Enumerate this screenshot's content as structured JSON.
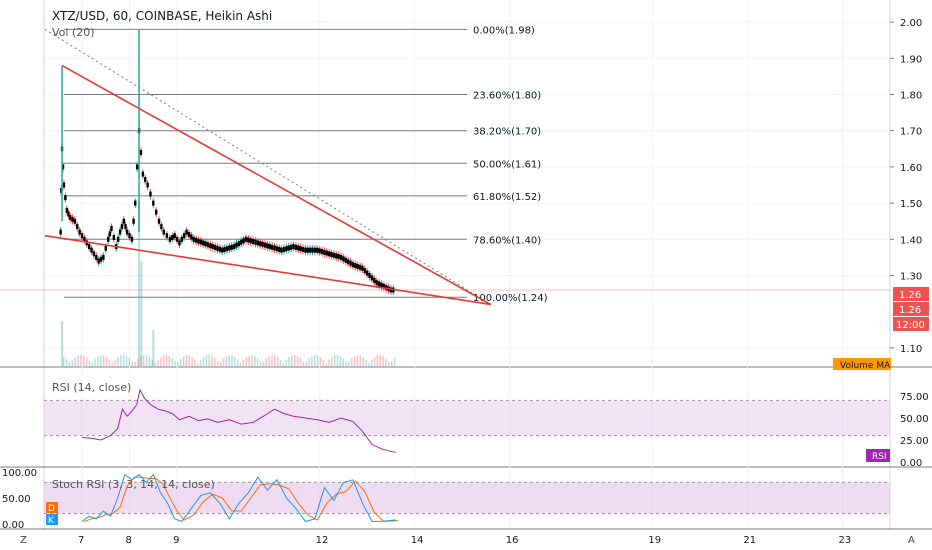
{
  "header": {
    "symbol_line": "XTZ/USD, 60, COINBASE, Heikin Ashi",
    "volume_label": "Vol (20)"
  },
  "colors": {
    "bull": "#26a69a",
    "bear": "#ef5350",
    "candle_body": "#000000",
    "trendline": "#e53935",
    "fib_line": "#787b86",
    "rsi": "#9c27b0",
    "rsi_band": "#e1bee7",
    "stoch_k": "#2196f3",
    "stoch_d": "#ff6d00",
    "price_tag": "#ef5350",
    "volume_ma_tag": "#ff9800"
  },
  "price_axis": {
    "ticks": [
      "2.00",
      "1.90",
      "1.80",
      "1.70",
      "1.60",
      "1.50",
      "1.40",
      "1.30",
      "1.10"
    ],
    "current_price": "1.26",
    "current_price_2": "1.26",
    "countdown": "12:00"
  },
  "volume_ma_tag": "Volume MA",
  "fib_levels": [
    {
      "label": "0.00%(1.98)",
      "price": 1.98
    },
    {
      "label": "23.60%(1.80)",
      "price": 1.8
    },
    {
      "label": "38.20%(1.70)",
      "price": 1.7
    },
    {
      "label": "50.00%(1.61)",
      "price": 1.61
    },
    {
      "label": "61.80%(1.52)",
      "price": 1.52
    },
    {
      "label": "78.60%(1.40)",
      "price": 1.4
    },
    {
      "label": "100.00%(1.24)",
      "price": 1.24
    }
  ],
  "rsi_pane": {
    "label": "RSI (14, close)",
    "ticks": [
      "75.00",
      "50.00",
      "25.00",
      "0.00"
    ],
    "tag": "RSI"
  },
  "stoch_pane": {
    "label": "Stoch RSI (3, 3, 14, 14, close)",
    "ticks": [
      "100.00",
      "50.00",
      "0.00"
    ],
    "d_tag": "D",
    "k_tag": "K"
  },
  "time_axis": {
    "labels": [
      "7",
      "8",
      "9",
      "12",
      "14",
      "16",
      "19",
      "21",
      "23"
    ],
    "left_button": "Z",
    "right_button": "A"
  },
  "chart_data": {
    "type": "candlestick",
    "ylim": [
      1.05,
      2.05
    ],
    "grid": true,
    "x_day_range": [
      6.2,
      24.0
    ],
    "price_path": [
      [
        6.55,
        1.42
      ],
      [
        6.58,
        1.65
      ],
      [
        6.62,
        1.55
      ],
      [
        6.68,
        1.48
      ],
      [
        6.75,
        1.46
      ],
      [
        6.85,
        1.45
      ],
      [
        6.95,
        1.42
      ],
      [
        7.05,
        1.4
      ],
      [
        7.15,
        1.38
      ],
      [
        7.25,
        1.36
      ],
      [
        7.35,
        1.34
      ],
      [
        7.45,
        1.35
      ],
      [
        7.55,
        1.4
      ],
      [
        7.62,
        1.43
      ],
      [
        7.72,
        1.38
      ],
      [
        7.8,
        1.42
      ],
      [
        7.88,
        1.45
      ],
      [
        7.95,
        1.42
      ],
      [
        8.05,
        1.4
      ],
      [
        8.12,
        1.5
      ],
      [
        8.2,
        1.7
      ],
      [
        8.28,
        1.58
      ],
      [
        8.38,
        1.55
      ],
      [
        8.5,
        1.5
      ],
      [
        8.62,
        1.45
      ],
      [
        8.72,
        1.42
      ],
      [
        8.85,
        1.4
      ],
      [
        8.95,
        1.41
      ],
      [
        9.05,
        1.39
      ],
      [
        9.2,
        1.42
      ],
      [
        9.35,
        1.4
      ],
      [
        9.55,
        1.39
      ],
      [
        9.75,
        1.38
      ],
      [
        9.95,
        1.37
      ],
      [
        10.2,
        1.38
      ],
      [
        10.45,
        1.4
      ],
      [
        10.7,
        1.39
      ],
      [
        10.95,
        1.38
      ],
      [
        11.2,
        1.37
      ],
      [
        11.45,
        1.38
      ],
      [
        11.7,
        1.37
      ],
      [
        11.95,
        1.37
      ],
      [
        12.2,
        1.36
      ],
      [
        12.45,
        1.35
      ],
      [
        12.7,
        1.33
      ],
      [
        12.9,
        1.32
      ],
      [
        13.05,
        1.3
      ],
      [
        13.2,
        1.28
      ],
      [
        13.35,
        1.27
      ],
      [
        13.5,
        1.26
      ],
      [
        13.6,
        1.26
      ]
    ],
    "volume_spikes": [
      {
        "day": 6.58,
        "relative": 0.15
      },
      {
        "day": 8.2,
        "relative": 0.55
      },
      {
        "day": 8.25,
        "relative": 0.35
      },
      {
        "day": 8.5,
        "relative": 0.12
      }
    ],
    "rsi_path": [
      [
        7.0,
        28
      ],
      [
        7.2,
        27
      ],
      [
        7.4,
        25
      ],
      [
        7.6,
        30
      ],
      [
        7.75,
        38
      ],
      [
        7.85,
        60
      ],
      [
        7.95,
        52
      ],
      [
        8.05,
        58
      ],
      [
        8.15,
        65
      ],
      [
        8.22,
        82
      ],
      [
        8.32,
        72
      ],
      [
        8.45,
        65
      ],
      [
        8.6,
        60
      ],
      [
        8.75,
        58
      ],
      [
        8.9,
        55
      ],
      [
        9.05,
        48
      ],
      [
        9.25,
        52
      ],
      [
        9.45,
        47
      ],
      [
        9.65,
        49
      ],
      [
        9.85,
        45
      ],
      [
        10.1,
        48
      ],
      [
        10.35,
        43
      ],
      [
        10.6,
        45
      ],
      [
        10.85,
        53
      ],
      [
        11.05,
        60
      ],
      [
        11.25,
        55
      ],
      [
        11.45,
        52
      ],
      [
        11.7,
        50
      ],
      [
        11.95,
        48
      ],
      [
        12.2,
        45
      ],
      [
        12.45,
        50
      ],
      [
        12.7,
        46
      ],
      [
        12.9,
        35
      ],
      [
        13.1,
        20
      ],
      [
        13.3,
        15
      ],
      [
        13.5,
        12
      ],
      [
        13.6,
        11
      ]
    ],
    "stoch_k_path": [
      [
        7.0,
        5
      ],
      [
        7.15,
        15
      ],
      [
        7.3,
        10
      ],
      [
        7.45,
        25
      ],
      [
        7.6,
        15
      ],
      [
        7.75,
        50
      ],
      [
        7.9,
        95
      ],
      [
        8.05,
        85
      ],
      [
        8.2,
        95
      ],
      [
        8.35,
        80
      ],
      [
        8.5,
        95
      ],
      [
        8.65,
        60
      ],
      [
        8.8,
        40
      ],
      [
        8.95,
        10
      ],
      [
        9.1,
        5
      ],
      [
        9.3,
        30
      ],
      [
        9.5,
        55
      ],
      [
        9.7,
        60
      ],
      [
        9.9,
        40
      ],
      [
        10.1,
        10
      ],
      [
        10.3,
        40
      ],
      [
        10.5,
        60
      ],
      [
        10.7,
        90
      ],
      [
        10.9,
        65
      ],
      [
        11.1,
        85
      ],
      [
        11.3,
        50
      ],
      [
        11.5,
        30
      ],
      [
        11.7,
        5
      ],
      [
        11.9,
        10
      ],
      [
        12.1,
        70
      ],
      [
        12.3,
        45
      ],
      [
        12.5,
        80
      ],
      [
        12.7,
        85
      ],
      [
        12.9,
        40
      ],
      [
        13.1,
        5
      ],
      [
        13.3,
        5
      ],
      [
        13.6,
        8
      ]
    ],
    "trendlines": [
      {
        "from": [
          6.58,
          1.88
        ],
        "to": [
          15.6,
          1.22
        ]
      },
      {
        "from": [
          6.22,
          1.41
        ],
        "to": [
          15.6,
          1.22
        ]
      }
    ],
    "dotted_line": {
      "from": [
        6.22,
        1.98
      ],
      "to": [
        15.6,
        1.22
      ]
    }
  }
}
